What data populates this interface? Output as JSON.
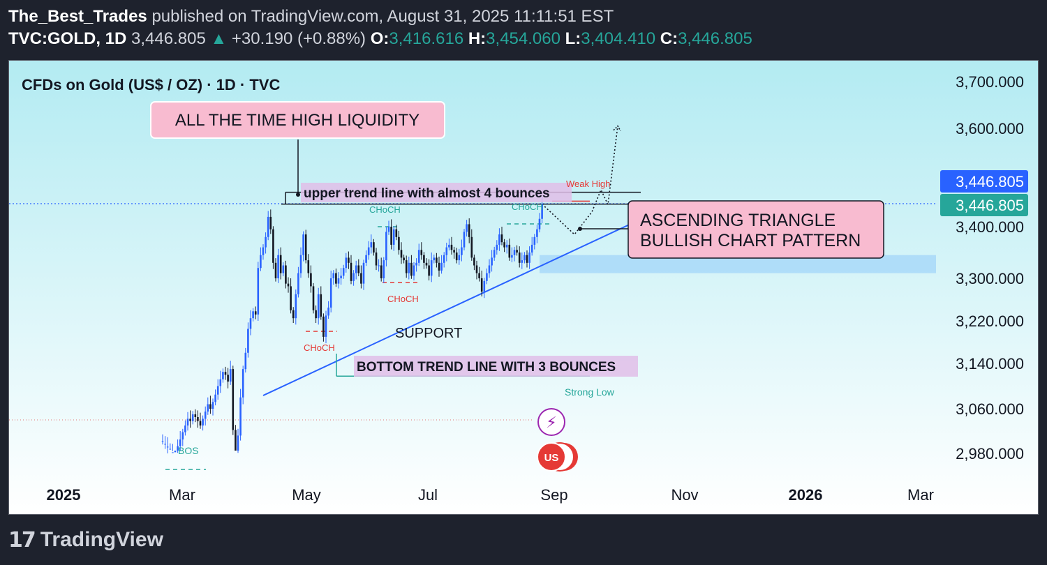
{
  "header": {
    "author": "The_Best_Trades",
    "published_text": "published on TradingView.com, August 31, 2025 11:11:51 EST",
    "symbol": "TVC:GOLD, 1D",
    "last_price": "3,446.805",
    "change_arrow": "▲",
    "change": "+30.190 (+0.88%)",
    "open_label": "O:",
    "open": "3,416.616",
    "high_label": "H:",
    "high": "3,454.060",
    "low_label": "L:",
    "low": "3,404.410",
    "close_label": "C:",
    "close": "3,446.805"
  },
  "footer": {
    "brand": "TradingView",
    "logo_mark": "17"
  },
  "colors": {
    "up": "#2962ff",
    "down": "#131722",
    "trendline": "#2962ff",
    "label_pink": "#f8bbd0",
    "label_border": "#ffffff",
    "green": "#26a69a",
    "red": "#e53935",
    "price_badge_blue": "#2962ff",
    "price_badge_green": "#26a69a"
  },
  "chart_data": {
    "type": "candlestick",
    "title": "CFDs on Gold (US$ / OZ) · 1D · TVC",
    "y_ticks": [
      2980,
      3060,
      3140,
      3220,
      3300,
      3400,
      3600,
      3700
    ],
    "y_tick_labels": [
      "2,980.000",
      "3,060.000",
      "3,140.000",
      "3,220.000",
      "3,300.000",
      "3,400.000",
      "3,600.000",
      "3,700.000"
    ],
    "x_ticks": [
      "2025",
      "Mar",
      "May",
      "Jul",
      "Sep",
      "Nov",
      "2026",
      "Mar"
    ],
    "x_tick_bold": [
      true,
      false,
      false,
      false,
      false,
      false,
      true,
      false
    ],
    "current_price": 3446.805,
    "price_badges": [
      "3,446.805",
      "3,446.805"
    ],
    "dotted_level_price": 3040,
    "daily_closes": [
      2958,
      2963,
      2968,
      2972,
      2978,
      2985,
      2993,
      3005,
      3018,
      3030,
      3042,
      3038,
      3050,
      3045,
      3038,
      3030,
      3042,
      3055,
      3068,
      3060,
      3072,
      3085,
      3100,
      3112,
      3125,
      3120,
      3108,
      3130,
      3022,
      2985,
      3012,
      3080,
      3130,
      3160,
      3205,
      3225,
      3238,
      3232,
      3320,
      3345,
      3360,
      3380,
      3420,
      3395,
      3330,
      3300,
      3345,
      3310,
      3325,
      3290,
      3285,
      3240,
      3225,
      3270,
      3310,
      3345,
      3385,
      3335,
      3310,
      3285,
      3240,
      3225,
      3270,
      3228,
      3190,
      3230,
      3245,
      3300,
      3310,
      3290,
      3300,
      3305,
      3320,
      3340,
      3330,
      3295,
      3310,
      3325,
      3310,
      3290,
      3330,
      3345,
      3360,
      3370,
      3350,
      3325,
      3325,
      3300,
      3335,
      3390,
      3400,
      3365,
      3395,
      3380,
      3355,
      3340,
      3335,
      3310,
      3330,
      3305,
      3325,
      3330,
      3355,
      3345,
      3330,
      3325,
      3305,
      3335,
      3340,
      3330,
      3315,
      3330,
      3345,
      3360,
      3365,
      3355,
      3350,
      3335,
      3345,
      3360,
      3390,
      3405,
      3380,
      3340,
      3325,
      3310,
      3300,
      3275,
      3295,
      3310,
      3325,
      3340,
      3355,
      3365,
      3385,
      3370,
      3360,
      3365,
      3340,
      3345,
      3355,
      3350,
      3330,
      3335,
      3345,
      3330,
      3350,
      3365,
      3380,
      3395,
      3416,
      3446
    ],
    "annotations": {
      "ath_label": "ALL THE TIME HIGH LIQUIDITY",
      "upper_trend_label": "upper trend line with almost 4 bounces",
      "pattern_label_line1": "ASCENDING TRIANGLE",
      "pattern_label_line2": "BULLISH CHART PATTERN",
      "support_label": "SUPPORT",
      "bottom_trend_label": "BOTTOM TREND LINE WITH 3 BOUNCES",
      "weak_high": "Weak High",
      "strong_low": "Strong Low",
      "choch": "CHoCH",
      "bos": "BOS",
      "event_icon_1": "⚡",
      "event_icon_2": "US"
    },
    "levels": {
      "resistance_top": 3470,
      "resistance": 3446,
      "support_zone_top": 3345,
      "support_zone_bottom": 3310,
      "bottom_trend_level": 3120,
      "weak_high_level": 3452,
      "projection_points": [
        3446,
        3385,
        3430,
        3475,
        3445,
        3605
      ]
    }
  }
}
